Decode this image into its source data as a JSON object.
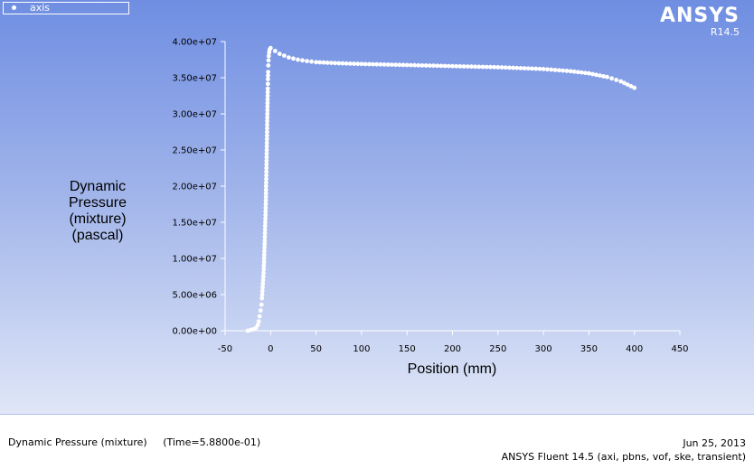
{
  "legend": {
    "label": "axis",
    "color": "#ffffff"
  },
  "brand": {
    "name": "ANSYS",
    "version": "R14.5"
  },
  "footer": {
    "caption": "Dynamic Pressure (mixture)",
    "time": "(Time=5.8800e-01)",
    "date": "Jun 25, 2013",
    "software": "ANSYS Fluent 14.5 (axi, pbns, vof, ske, transient)"
  },
  "colors": {
    "background_top": "#6f8ee2",
    "background_bottom": "#dfe6f7",
    "marker": "#ffffff"
  },
  "chart_data": {
    "type": "scatter",
    "title": "",
    "xlabel": "Position (mm)",
    "ylabel_lines": [
      "Dynamic",
      "Pressure",
      "(mixture)",
      "(pascal)"
    ],
    "xlim": [
      -50,
      450
    ],
    "ylim": [
      0,
      40000000
    ],
    "xticks": [
      -50,
      0,
      50,
      100,
      150,
      200,
      250,
      300,
      350,
      400,
      450
    ],
    "yticks": [
      0,
      5000000,
      10000000,
      15000000,
      20000000,
      25000000,
      30000000,
      35000000,
      40000000
    ],
    "ytick_labels": [
      "0.00e+00",
      "5.00e+06",
      "1.00e+07",
      "1.50e+07",
      "2.00e+07",
      "2.50e+07",
      "3.00e+07",
      "3.50e+07",
      "4.00e+07"
    ],
    "grid": false,
    "legend_position": "top-left",
    "series": [
      {
        "name": "axis",
        "points": [
          [
            -25,
            0
          ],
          [
            -22,
            100000
          ],
          [
            -19,
            200000
          ],
          [
            -16,
            400000
          ],
          [
            -14,
            800000
          ],
          [
            -13,
            1300000
          ],
          [
            -12,
            2000000
          ],
          [
            -11,
            2800000
          ],
          [
            -10,
            3600000
          ],
          [
            -9.5,
            4500000
          ],
          [
            -9,
            5500000
          ],
          [
            -8.5,
            6500000
          ],
          [
            -8,
            7500000
          ],
          [
            -7.5,
            8500000
          ],
          [
            -7.2,
            9500000
          ],
          [
            -7,
            10500000
          ],
          [
            -6.7,
            11500000
          ],
          [
            -6.4,
            12500000
          ],
          [
            -6.2,
            13500000
          ],
          [
            -6,
            14500000
          ],
          [
            -5.7,
            15500000
          ],
          [
            -5.5,
            16500000
          ],
          [
            -5.3,
            17500000
          ],
          [
            -5.1,
            18500000
          ],
          [
            -5,
            20000000
          ],
          [
            -4.7,
            21500000
          ],
          [
            -4.5,
            23000000
          ],
          [
            -4.3,
            24500000
          ],
          [
            -4.1,
            26000000
          ],
          [
            -3.9,
            27500000
          ],
          [
            -3.7,
            29000000
          ],
          [
            -3.5,
            30500000
          ],
          [
            -3.3,
            32000000
          ],
          [
            -3.1,
            33500000
          ],
          [
            -2.9,
            34800000
          ],
          [
            -2.7,
            35800000
          ],
          [
            -2.5,
            36700000
          ],
          [
            -2.3,
            37400000
          ],
          [
            -2,
            38000000
          ],
          [
            -1.6,
            38500000
          ],
          [
            -1,
            38900000
          ],
          [
            0,
            39100000
          ],
          [
            5,
            38700000
          ],
          [
            10,
            38300000
          ],
          [
            20,
            37800000
          ],
          [
            30,
            37500000
          ],
          [
            40,
            37300000
          ],
          [
            50,
            37150000
          ],
          [
            75,
            37000000
          ],
          [
            100,
            36900000
          ],
          [
            150,
            36750000
          ],
          [
            200,
            36600000
          ],
          [
            250,
            36450000
          ],
          [
            300,
            36200000
          ],
          [
            330,
            35900000
          ],
          [
            350,
            35600000
          ],
          [
            370,
            35100000
          ],
          [
            385,
            34500000
          ],
          [
            400,
            33600000
          ]
        ]
      }
    ]
  }
}
